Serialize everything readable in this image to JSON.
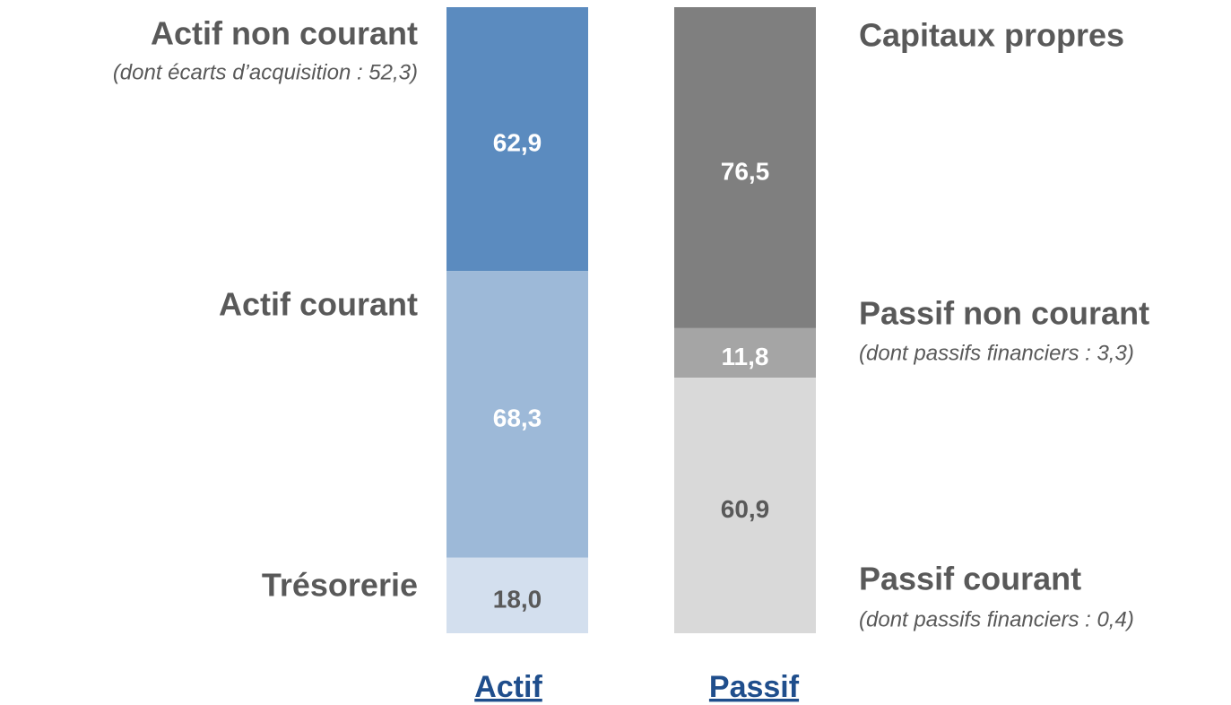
{
  "chart_data": {
    "type": "stacked_bar",
    "categories": [
      "Actif",
      "Passif"
    ],
    "stacks": [
      {
        "segments": [
          {
            "name": "Actif non courant",
            "note": "(dont écarts d’acquisition : 52,3)",
            "value": 62.9,
            "value_label": "62,9",
            "color": "#5b8bbf",
            "label_color": "#ffffff"
          },
          {
            "name": "Actif courant",
            "value": 68.3,
            "value_label": "68,3",
            "color": "#9db9d8",
            "label_color": "#ffffff"
          },
          {
            "name": "Trésorerie",
            "value": 18.0,
            "value_label": "18,0",
            "color": "#d3dfee",
            "label_color": "#595959"
          }
        ]
      },
      {
        "segments": [
          {
            "name": "Capitaux propres",
            "value": 76.5,
            "value_label": "76,5",
            "color": "#7f7f7f",
            "label_color": "#ffffff"
          },
          {
            "name": "Passif non courant",
            "note": "(dont passifs financiers : 3,3)",
            "value": 11.8,
            "value_label": "11,8",
            "color": "#a5a5a5",
            "label_color": "#ffffff"
          },
          {
            "name": "Passif courant",
            "note": "(dont passifs financiers : 0,4)",
            "value": 60.9,
            "value_label": "60,9",
            "color": "#d9d9d9",
            "label_color": "#595959"
          }
        ]
      }
    ]
  }
}
